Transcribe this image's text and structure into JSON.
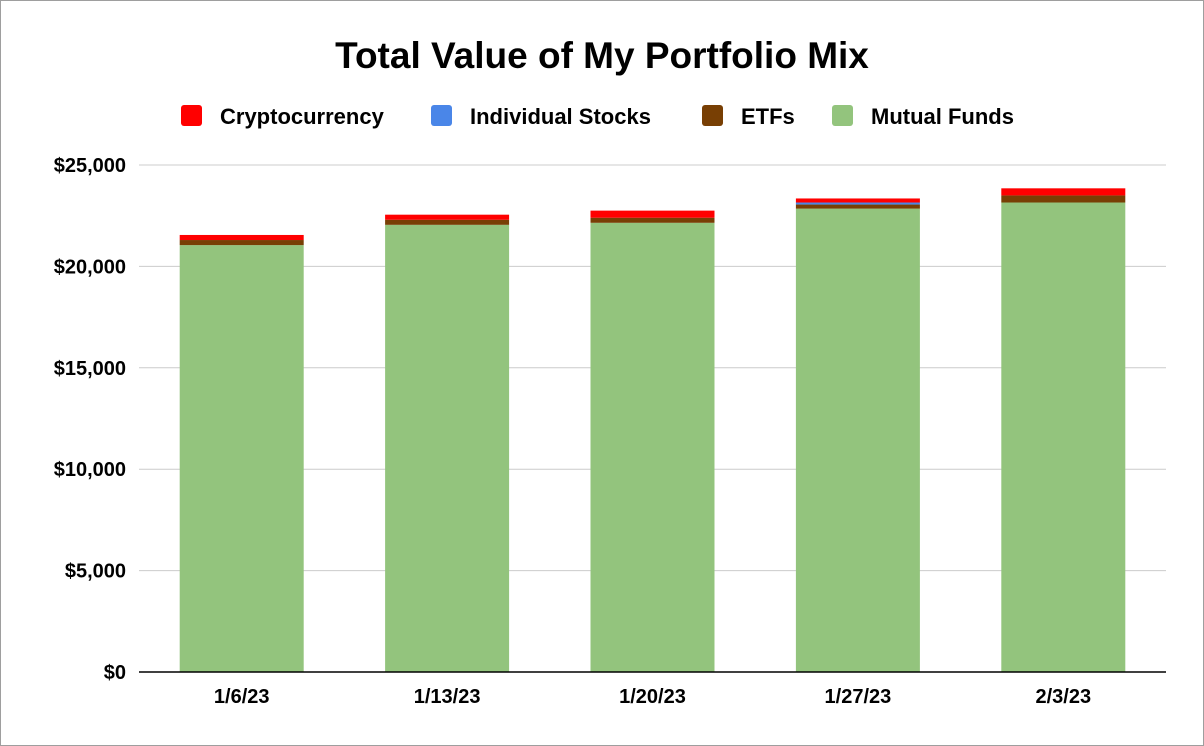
{
  "chart_data": {
    "type": "bar",
    "stacked": true,
    "title": "Total Value of My Portfolio Mix",
    "xlabel": "",
    "ylabel": "",
    "categories": [
      "1/6/23",
      "1/13/23",
      "1/20/23",
      "1/27/23",
      "2/3/23"
    ],
    "series": [
      {
        "name": "Mutual Funds",
        "color": "#93c47d",
        "values": [
          21050,
          22050,
          22150,
          22850,
          23150
        ]
      },
      {
        "name": "ETFs",
        "color": "#783f04",
        "values": [
          250,
          250,
          250,
          200,
          350
        ]
      },
      {
        "name": "Individual Stocks",
        "color": "#4a86e8",
        "values": [
          0,
          0,
          0,
          100,
          0
        ]
      },
      {
        "name": "Cryptocurrency",
        "color": "#ff0000",
        "values": [
          250,
          250,
          350,
          200,
          350
        ]
      }
    ],
    "legend": {
      "position": "top",
      "order": [
        "Cryptocurrency",
        "Individual Stocks",
        "ETFs",
        "Mutual Funds"
      ]
    },
    "ylim": [
      0,
      25000
    ],
    "yticks": [
      0,
      5000,
      10000,
      15000,
      20000,
      25000
    ],
    "ytick_labels": [
      "$0",
      "$5,000",
      "$10,000",
      "$15,000",
      "$20,000",
      "$25,000"
    ],
    "grid": true
  }
}
